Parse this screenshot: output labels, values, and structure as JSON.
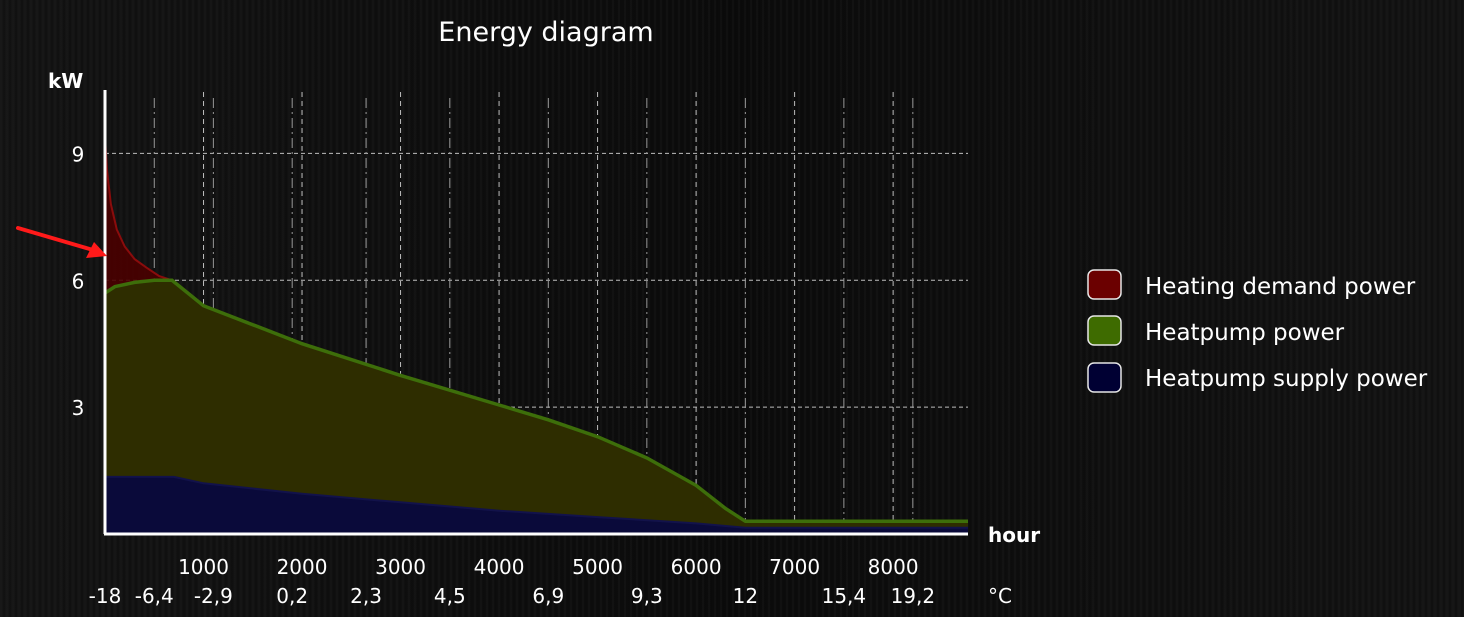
{
  "chart_data": {
    "type": "area",
    "title": "Energy diagram",
    "ylabel": "kW",
    "xlabel": "hour",
    "temp_unit": "°C",
    "ylim": [
      0,
      10.5
    ],
    "xlim": [
      0,
      8760
    ],
    "y_ticks": [
      9,
      6,
      3
    ],
    "x_ticks": [
      1000,
      2000,
      3000,
      4000,
      5000,
      6000,
      7000,
      8000
    ],
    "temperature_ticks": [
      {
        "hour": 0,
        "label": "-18"
      },
      {
        "hour": 500,
        "label": "-6,4"
      },
      {
        "hour": 1100,
        "label": "-2,9"
      },
      {
        "hour": 1900,
        "label": "0,2"
      },
      {
        "hour": 2650,
        "label": "2,3"
      },
      {
        "hour": 3500,
        "label": "4,5"
      },
      {
        "hour": 4500,
        "label": "6,9"
      },
      {
        "hour": 5500,
        "label": "9,3"
      },
      {
        "hour": 6500,
        "label": "12"
      },
      {
        "hour": 7500,
        "label": "15,4"
      },
      {
        "hour": 8200,
        "label": "19,2"
      }
    ],
    "grid": true,
    "legend_position": "right",
    "series": [
      {
        "name": "Heating demand power",
        "color": "#6b0000",
        "x": [
          0,
          20,
          60,
          120,
          200,
          300,
          420,
          550,
          680
        ],
        "values": [
          9.4,
          8.6,
          7.8,
          7.2,
          6.8,
          6.5,
          6.3,
          6.1,
          6.0
        ]
      },
      {
        "name": "Heatpump power",
        "color": "#3e6b00",
        "x": [
          0,
          100,
          300,
          500,
          680,
          1000,
          2000,
          3000,
          4000,
          4500,
          5000,
          5500,
          6000,
          6300,
          6500,
          8760
        ],
        "values": [
          5.7,
          5.85,
          5.95,
          6.0,
          6.0,
          5.4,
          4.5,
          3.75,
          3.05,
          2.7,
          2.3,
          1.8,
          1.15,
          0.6,
          0.3,
          0.3
        ]
      },
      {
        "name": "Heatpump supply power",
        "color": "#000033",
        "x": [
          0,
          700,
          1000,
          2000,
          3000,
          4000,
          5000,
          6000,
          6500,
          8760
        ],
        "values": [
          1.35,
          1.35,
          1.2,
          0.95,
          0.75,
          0.55,
          0.4,
          0.25,
          0.15,
          0.15
        ]
      }
    ]
  }
}
